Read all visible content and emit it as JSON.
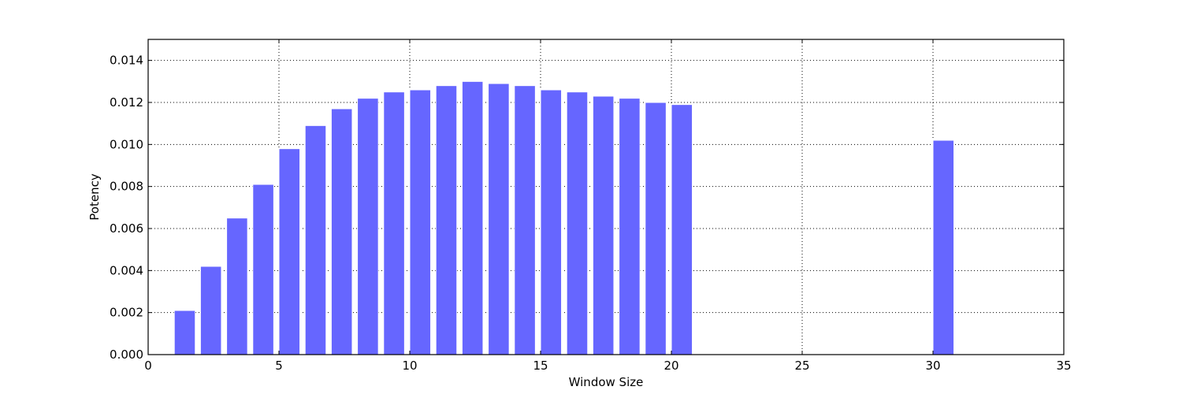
{
  "chart_data": {
    "type": "bar",
    "title": "",
    "xlabel": "Window Size",
    "ylabel": "Potency",
    "xlim": [
      0,
      35
    ],
    "ylim": [
      0,
      0.015
    ],
    "grid": true,
    "bar_color": "#6666ff",
    "bar_edge_color": "#ffffff",
    "bar_width": 0.8,
    "xticks": [
      0,
      5,
      10,
      15,
      20,
      25,
      30,
      35
    ],
    "xtick_labels": [
      "0",
      "5",
      "10",
      "15",
      "20",
      "25",
      "30",
      "35"
    ],
    "yticks": [
      0,
      0.002,
      0.004,
      0.006,
      0.008,
      0.01,
      0.012,
      0.014
    ],
    "ytick_labels": [
      "0.000",
      "0.002",
      "0.004",
      "0.006",
      "0.008",
      "0.010",
      "0.012",
      "0.014"
    ],
    "series": [
      {
        "x": [
          1,
          2,
          3,
          4,
          5,
          6,
          7,
          8,
          9,
          10,
          11,
          12,
          13,
          14,
          15,
          16,
          17,
          18,
          19,
          20,
          30
        ],
        "values": [
          0.0021,
          0.0042,
          0.0065,
          0.0081,
          0.0098,
          0.0109,
          0.0117,
          0.0122,
          0.0125,
          0.0126,
          0.0128,
          0.013,
          0.0129,
          0.0128,
          0.0126,
          0.0125,
          0.0123,
          0.0122,
          0.012,
          0.0119,
          0.0102
        ]
      }
    ]
  }
}
